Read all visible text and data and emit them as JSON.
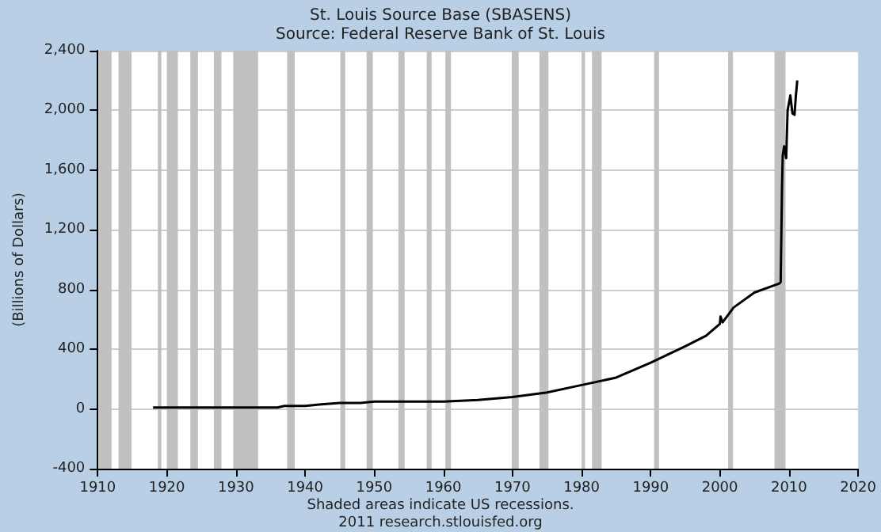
{
  "chart_data": {
    "type": "line",
    "title": "St. Louis Source Base (SBASENS)",
    "subtitle": "Source: Federal Reserve Bank of St. Louis",
    "ylabel": "(Billions of Dollars)",
    "annotations": [
      "Shaded areas indicate US recessions.",
      "2011 research.stlouisfed.org"
    ],
    "series": [
      {
        "color": "#000000",
        "x": [
          1918,
          1925,
          1930,
          1936,
          1937,
          1940,
          1942,
          1945,
          1946,
          1948,
          1950,
          1955,
          1960,
          1965,
          1970,
          1975,
          1980,
          1985,
          1990,
          1995,
          1998,
          2000,
          2000.1,
          2000.4,
          2002,
          2005,
          2008.6,
          2008.8,
          2009.0,
          2009.1,
          2009.3,
          2009.6,
          2009.8,
          2010.2,
          2010.5,
          2010.8,
          2011.0,
          2011.2
        ],
        "values": [
          10,
          10,
          10,
          10,
          20,
          20,
          30,
          40,
          40,
          40,
          50,
          50,
          50,
          60,
          80,
          110,
          160,
          210,
          310,
          420,
          490,
          570,
          620,
          580,
          680,
          780,
          840,
          850,
          1500,
          1700,
          1760,
          1680,
          2000,
          2100,
          1980,
          1970,
          2100,
          2200
        ]
      }
    ],
    "xlim": [
      1910,
      2020
    ],
    "xticks": [
      1910,
      1920,
      1930,
      1940,
      1950,
      1960,
      1970,
      1980,
      1990,
      2000,
      2010,
      2020
    ],
    "ylim": [
      -400,
      2400
    ],
    "yticks": [
      -400,
      0,
      400,
      800,
      {
        "value": 1200,
        "label": "1,200"
      },
      {
        "value": 1600,
        "label": "1,600"
      },
      {
        "value": 2000,
        "label": "2,000"
      },
      {
        "value": 2400,
        "label": "2,400"
      }
    ],
    "grid": "y",
    "marker": "none",
    "line_style": "solid",
    "bands": [
      {
        "axis": "x",
        "from": 1910.1,
        "to": 1912.0,
        "color": "#c0c0c0"
      },
      {
        "axis": "x",
        "from": 1913.0,
        "to": 1914.9,
        "color": "#c0c0c0"
      },
      {
        "axis": "x",
        "from": 1918.7,
        "to": 1919.2,
        "color": "#c0c0c0"
      },
      {
        "axis": "x",
        "from": 1920.0,
        "to": 1921.6,
        "color": "#c0c0c0"
      },
      {
        "axis": "x",
        "from": 1923.4,
        "to": 1924.5,
        "color": "#c0c0c0"
      },
      {
        "axis": "x",
        "from": 1926.8,
        "to": 1927.9,
        "color": "#c0c0c0"
      },
      {
        "axis": "x",
        "from": 1929.6,
        "to": 1933.2,
        "color": "#c0c0c0"
      },
      {
        "axis": "x",
        "from": 1937.4,
        "to": 1938.5,
        "color": "#c0c0c0"
      },
      {
        "axis": "x",
        "from": 1945.1,
        "to": 1945.8,
        "color": "#c0c0c0"
      },
      {
        "axis": "x",
        "from": 1948.9,
        "to": 1949.8,
        "color": "#c0c0c0"
      },
      {
        "axis": "x",
        "from": 1953.5,
        "to": 1954.4,
        "color": "#c0c0c0"
      },
      {
        "axis": "x",
        "from": 1957.6,
        "to": 1958.3,
        "color": "#c0c0c0"
      },
      {
        "axis": "x",
        "from": 1960.3,
        "to": 1961.1,
        "color": "#c0c0c0"
      },
      {
        "axis": "x",
        "from": 1969.9,
        "to": 1970.9,
        "color": "#c0c0c0"
      },
      {
        "axis": "x",
        "from": 1973.9,
        "to": 1975.2,
        "color": "#c0c0c0"
      },
      {
        "axis": "x",
        "from": 1980.0,
        "to": 1980.5,
        "color": "#c0c0c0"
      },
      {
        "axis": "x",
        "from": 1981.5,
        "to": 1982.9,
        "color": "#c0c0c0"
      },
      {
        "axis": "x",
        "from": 1990.5,
        "to": 1991.2,
        "color": "#c0c0c0"
      },
      {
        "axis": "x",
        "from": 2001.2,
        "to": 2001.9,
        "color": "#c0c0c0"
      },
      {
        "axis": "x",
        "from": 2007.9,
        "to": 2009.5,
        "color": "#c0c0c0"
      }
    ]
  }
}
